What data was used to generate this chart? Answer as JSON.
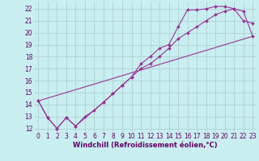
{
  "background_color": "#c8eef0",
  "grid_color": "#aacccc",
  "line_color": "#993399",
  "marker_color": "#993399",
  "xlabel": "Windchill (Refroidissement éolien,°C)",
  "xlabel_color": "#660066",
  "tick_color": "#660066",
  "xlim": [
    -0.5,
    23.4
  ],
  "ylim": [
    11.7,
    22.6
  ],
  "xticks": [
    0,
    1,
    2,
    3,
    4,
    5,
    6,
    7,
    8,
    9,
    10,
    11,
    12,
    13,
    14,
    15,
    16,
    17,
    18,
    19,
    20,
    21,
    22,
    23
  ],
  "yticks": [
    12,
    13,
    14,
    15,
    16,
    17,
    18,
    19,
    20,
    21,
    22
  ],
  "series1_x": [
    0,
    1,
    2,
    3,
    4,
    7,
    8,
    9,
    10,
    11,
    12,
    13,
    14,
    15,
    16,
    17,
    18,
    19,
    20,
    21,
    22,
    23
  ],
  "series1_y": [
    14.3,
    12.9,
    12.0,
    12.9,
    12.2,
    14.2,
    14.9,
    15.6,
    16.3,
    17.4,
    18.0,
    18.7,
    19.0,
    20.5,
    21.9,
    21.9,
    22.0,
    22.2,
    22.2,
    22.0,
    21.0,
    20.8
  ],
  "series2_x": [
    0,
    1,
    2,
    3,
    4,
    5,
    6,
    7,
    8,
    9,
    10,
    11,
    12,
    13,
    14,
    15,
    16,
    17,
    18,
    19,
    20,
    21,
    22,
    23
  ],
  "series2_y": [
    14.3,
    12.9,
    12.0,
    12.9,
    12.2,
    13.0,
    13.5,
    14.2,
    14.9,
    15.6,
    16.3,
    17.0,
    17.4,
    18.0,
    18.7,
    19.5,
    20.0,
    20.5,
    21.0,
    21.5,
    21.8,
    22.0,
    21.8,
    19.7
  ],
  "series3_x": [
    0,
    23
  ],
  "series3_y": [
    14.3,
    19.7
  ],
  "font_size_label": 6,
  "font_size_tick": 5.5
}
